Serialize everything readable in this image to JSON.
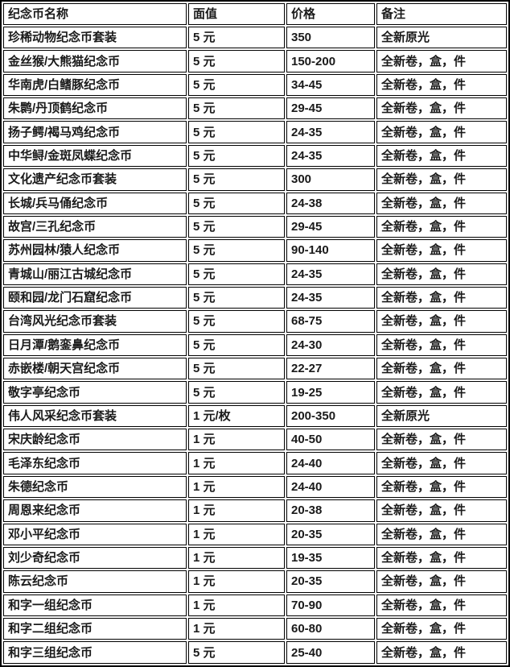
{
  "table": {
    "columns": [
      {
        "label": "纪念币名称"
      },
      {
        "label": "面值"
      },
      {
        "label": "价格"
      },
      {
        "label": "备注"
      }
    ],
    "rows": [
      [
        "珍稀动物纪念币套装",
        "5 元",
        "350",
        "全新原光"
      ],
      [
        "金丝猴/大熊猫纪念币",
        "5 元",
        "150-200",
        "全新卷，盒，件"
      ],
      [
        "华南虎/白鳍豚纪念币",
        "5 元",
        "34-45",
        "全新卷，盒，件"
      ],
      [
        "朱鹮/丹顶鹤纪念币",
        "5 元",
        "29-45",
        "全新卷，盒，件"
      ],
      [
        "扬子鳄/褐马鸡纪念币",
        "5 元",
        "24-35",
        "全新卷，盒，件"
      ],
      [
        "中华鲟/金斑凤蝶纪念币",
        "5 元",
        "24-35",
        "全新卷，盒，件"
      ],
      [
        "文化遗产纪念币套装",
        "5 元",
        "300",
        "全新卷，盒，件"
      ],
      [
        "长城/兵马俑纪念币",
        "5 元",
        "24-38",
        "全新卷，盒，件"
      ],
      [
        "故宫/三孔纪念币",
        "5 元",
        "29-45",
        "全新卷，盒，件"
      ],
      [
        "苏州园林/猿人纪念币",
        "5 元",
        "90-140",
        "全新卷，盒，件"
      ],
      [
        "青城山/丽江古城纪念币",
        "5 元",
        "24-35",
        "全新卷，盒，件"
      ],
      [
        "颐和园/龙门石窟纪念币",
        "5 元",
        "24-35",
        "全新卷，盒，件"
      ],
      [
        "台湾风光纪念币套装",
        "5 元",
        "68-75",
        "全新卷，盒，件"
      ],
      [
        "日月潭/鹅銮鼻纪念币",
        "5 元",
        "24-30",
        "全新卷，盒，件"
      ],
      [
        "赤嵌楼/朝天宫纪念币",
        "5 元",
        "22-27",
        "全新卷，盒，件"
      ],
      [
        "敬字亭纪念币",
        "5 元",
        "19-25",
        "全新卷，盒，件"
      ],
      [
        "伟人风采纪念币套装",
        "1 元/枚",
        "200-350",
        "全新原光"
      ],
      [
        "宋庆龄纪念币",
        "1 元",
        "40-50",
        "全新卷，盒，件"
      ],
      [
        "毛泽东纪念币",
        "1 元",
        "24-40",
        "全新卷，盒，件"
      ],
      [
        "朱德纪念币",
        "1 元",
        "24-40",
        "全新卷，盒，件"
      ],
      [
        "周恩来纪念币",
        "1 元",
        "20-38",
        "全新卷，盒，件"
      ],
      [
        "邓小平纪念币",
        "1 元",
        "20-35",
        "全新卷，盒，件"
      ],
      [
        "刘少奇纪念币",
        "1 元",
        "19-35",
        "全新卷，盒，件"
      ],
      [
        "陈云纪念币",
        "1 元",
        "20-35",
        "全新卷，盒，件"
      ],
      [
        "和字一组纪念币",
        "1 元",
        "70-90",
        "全新卷，盒，件"
      ],
      [
        "和字二组纪念币",
        "1 元",
        "60-80",
        "全新卷，盒，件"
      ],
      [
        "和字三组纪念币",
        "5 元",
        "25-40",
        "全新卷，盒，件"
      ]
    ]
  },
  "colors": {
    "border": "#000000",
    "text": "#1a1a1a",
    "background": "#ffffff"
  }
}
